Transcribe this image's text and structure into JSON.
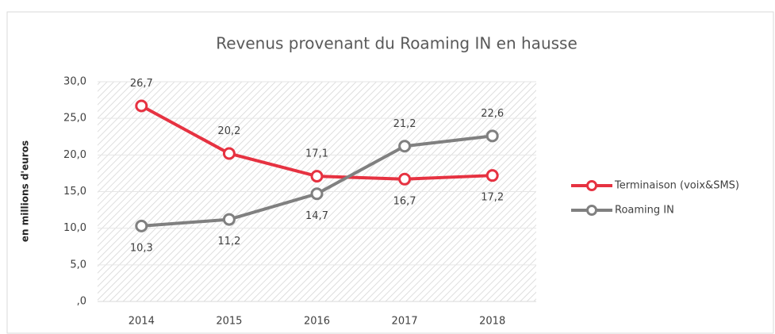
{
  "chart_data": {
    "type": "line",
    "title": "Revenus provenant du Roaming IN en hausse",
    "y_label": "en millions d'euros",
    "categories": [
      "2014",
      "2015",
      "2016",
      "2017",
      "2018"
    ],
    "series": [
      {
        "name": "Terminaison (voix&SMS)",
        "color": "#e63241",
        "values": [
          26.7,
          20.2,
          17.1,
          16.7,
          17.2
        ],
        "value_labels": [
          "26,7",
          "20,2",
          "17,1",
          "16,7",
          "17,2"
        ]
      },
      {
        "name": "Roaming IN",
        "color": "#808080",
        "values": [
          10.3,
          11.2,
          14.7,
          21.2,
          22.6
        ],
        "value_labels": [
          "10,3",
          "11,2",
          "14,7",
          "21,2",
          "22,6"
        ]
      }
    ],
    "ylim": [
      0,
      30
    ],
    "yticks": [
      {
        "value": 0,
        "label": ",0"
      },
      {
        "value": 5,
        "label": "5,0"
      },
      {
        "value": 10,
        "label": "10,0"
      },
      {
        "value": 15,
        "label": "15,0"
      },
      {
        "value": 20,
        "label": "20,0"
      },
      {
        "value": 25,
        "label": "25,0"
      },
      {
        "value": 30,
        "label": "30,0"
      }
    ],
    "grid": true,
    "legend": "right"
  }
}
